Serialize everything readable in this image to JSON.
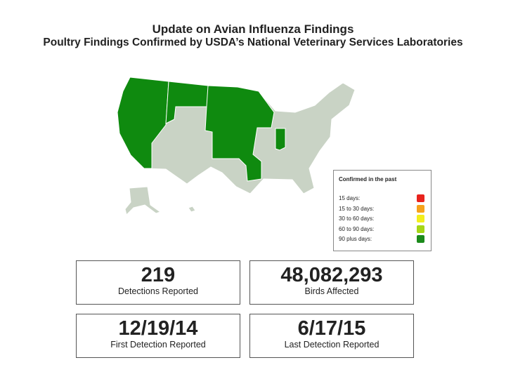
{
  "header": {
    "title": "Update on Avian Influenza Findings",
    "subtitle": "Poultry Findings Confirmed by USDA’s National Veterinary Services Laboratories"
  },
  "legend": {
    "title": "Confirmed in the past",
    "items": [
      {
        "label": "15 days:",
        "color": "#e8231d"
      },
      {
        "label": "15 to 30 days:",
        "color": "#f5a21b"
      },
      {
        "label": "30 to 60 days:",
        "color": "#f2ee1c"
      },
      {
        "label": "60 to 90 days:",
        "color": "#a6d616"
      },
      {
        "label": "90 plus days:",
        "color": "#1b8a1b"
      }
    ]
  },
  "stats": [
    {
      "value": "219",
      "label": "Detections Reported"
    },
    {
      "value": "48,082,293",
      "label": "Birds Affected"
    },
    {
      "value": "12/19/14",
      "label": "First Detection Reported"
    },
    {
      "value": "6/17/15",
      "label": "Last Detection Reported"
    }
  ]
}
